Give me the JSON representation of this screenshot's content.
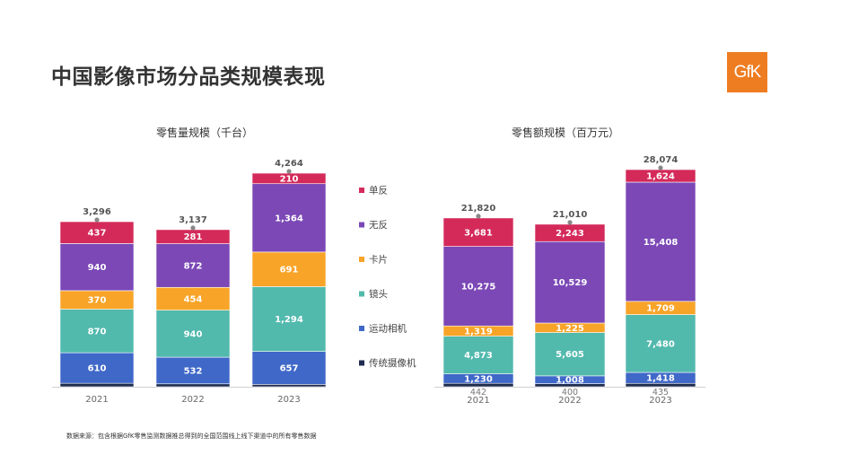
{
  "page": {
    "title": "中国影像市场分品类规模表现",
    "logo_text": "GfK",
    "footnote": "数据来源：包含根据GfK零售监测数据推总得到的全国范围线上线下渠道中的所有零售数据"
  },
  "legend": [
    {
      "name": "单反",
      "color": "#d42a5a"
    },
    {
      "name": "无反",
      "color": "#7b48b6"
    },
    {
      "name": "卡片",
      "color": "#f8a428"
    },
    {
      "name": "镜头",
      "color": "#52b9ad"
    },
    {
      "name": "运动相机",
      "color": "#3f68c8"
    },
    {
      "name": "传统摄像机",
      "color": "#1d2b4f"
    }
  ],
  "chart_data": [
    {
      "type": "bar",
      "stacked": true,
      "title": "零售量规模（千台）",
      "categories": [
        "2021",
        "2022",
        "2023"
      ],
      "totals": [
        3296,
        3137,
        4264
      ],
      "total_labels": [
        "3,296",
        "3,137",
        "4,264"
      ],
      "ylim": [
        0,
        4400
      ],
      "series": [
        {
          "name": "传统摄像机",
          "color": "#1d2b4f",
          "values": [
            69,
            58,
            48
          ],
          "labels": [
            "",
            "",
            ""
          ]
        },
        {
          "name": "运动相机",
          "color": "#3f68c8",
          "values": [
            610,
            532,
            657
          ],
          "labels": [
            "610",
            "532",
            "657"
          ]
        },
        {
          "name": "镜头",
          "color": "#52b9ad",
          "values": [
            870,
            940,
            1294
          ],
          "labels": [
            "870",
            "940",
            "1,294"
          ]
        },
        {
          "name": "卡片",
          "color": "#f8a428",
          "values": [
            370,
            454,
            691
          ],
          "labels": [
            "370",
            "454",
            "691"
          ]
        },
        {
          "name": "无反",
          "color": "#7b48b6",
          "values": [
            940,
            872,
            1364
          ],
          "labels": [
            "940",
            "872",
            "1,364"
          ]
        },
        {
          "name": "单反",
          "color": "#d42a5a",
          "values": [
            437,
            281,
            210
          ],
          "labels": [
            "437",
            "281",
            "210"
          ]
        }
      ]
    },
    {
      "type": "bar",
      "stacked": true,
      "title": "零售额规模（百万元）",
      "categories": [
        "2021",
        "2022",
        "2023"
      ],
      "totals": [
        21820,
        21010,
        28074
      ],
      "total_labels": [
        "21,820",
        "21,010",
        "28,074"
      ],
      "ylim": [
        0,
        29000
      ],
      "series": [
        {
          "name": "传统摄像机",
          "color": "#1d2b4f",
          "values": [
            442,
            400,
            435
          ],
          "labels": [
            "442",
            "400",
            "435"
          ],
          "label_below": true
        },
        {
          "name": "运动相机",
          "color": "#3f68c8",
          "values": [
            1230,
            1008,
            1418
          ],
          "labels": [
            "1,230",
            "1,008",
            "1,418"
          ]
        },
        {
          "name": "镜头",
          "color": "#52b9ad",
          "values": [
            4873,
            5605,
            7480
          ],
          "labels": [
            "4,873",
            "5,605",
            "7,480"
          ]
        },
        {
          "name": "卡片",
          "color": "#f8a428",
          "values": [
            1319,
            1225,
            1709
          ],
          "labels": [
            "1,319",
            "1,225",
            "1,709"
          ]
        },
        {
          "name": "无反",
          "color": "#7b48b6",
          "values": [
            10275,
            10529,
            15408
          ],
          "labels": [
            "10,275",
            "10,529",
            "15,408"
          ]
        },
        {
          "name": "单反",
          "color": "#d42a5a",
          "values": [
            3681,
            2243,
            1624
          ],
          "labels": [
            "3,681",
            "2,243",
            "1,624"
          ]
        }
      ]
    }
  ]
}
